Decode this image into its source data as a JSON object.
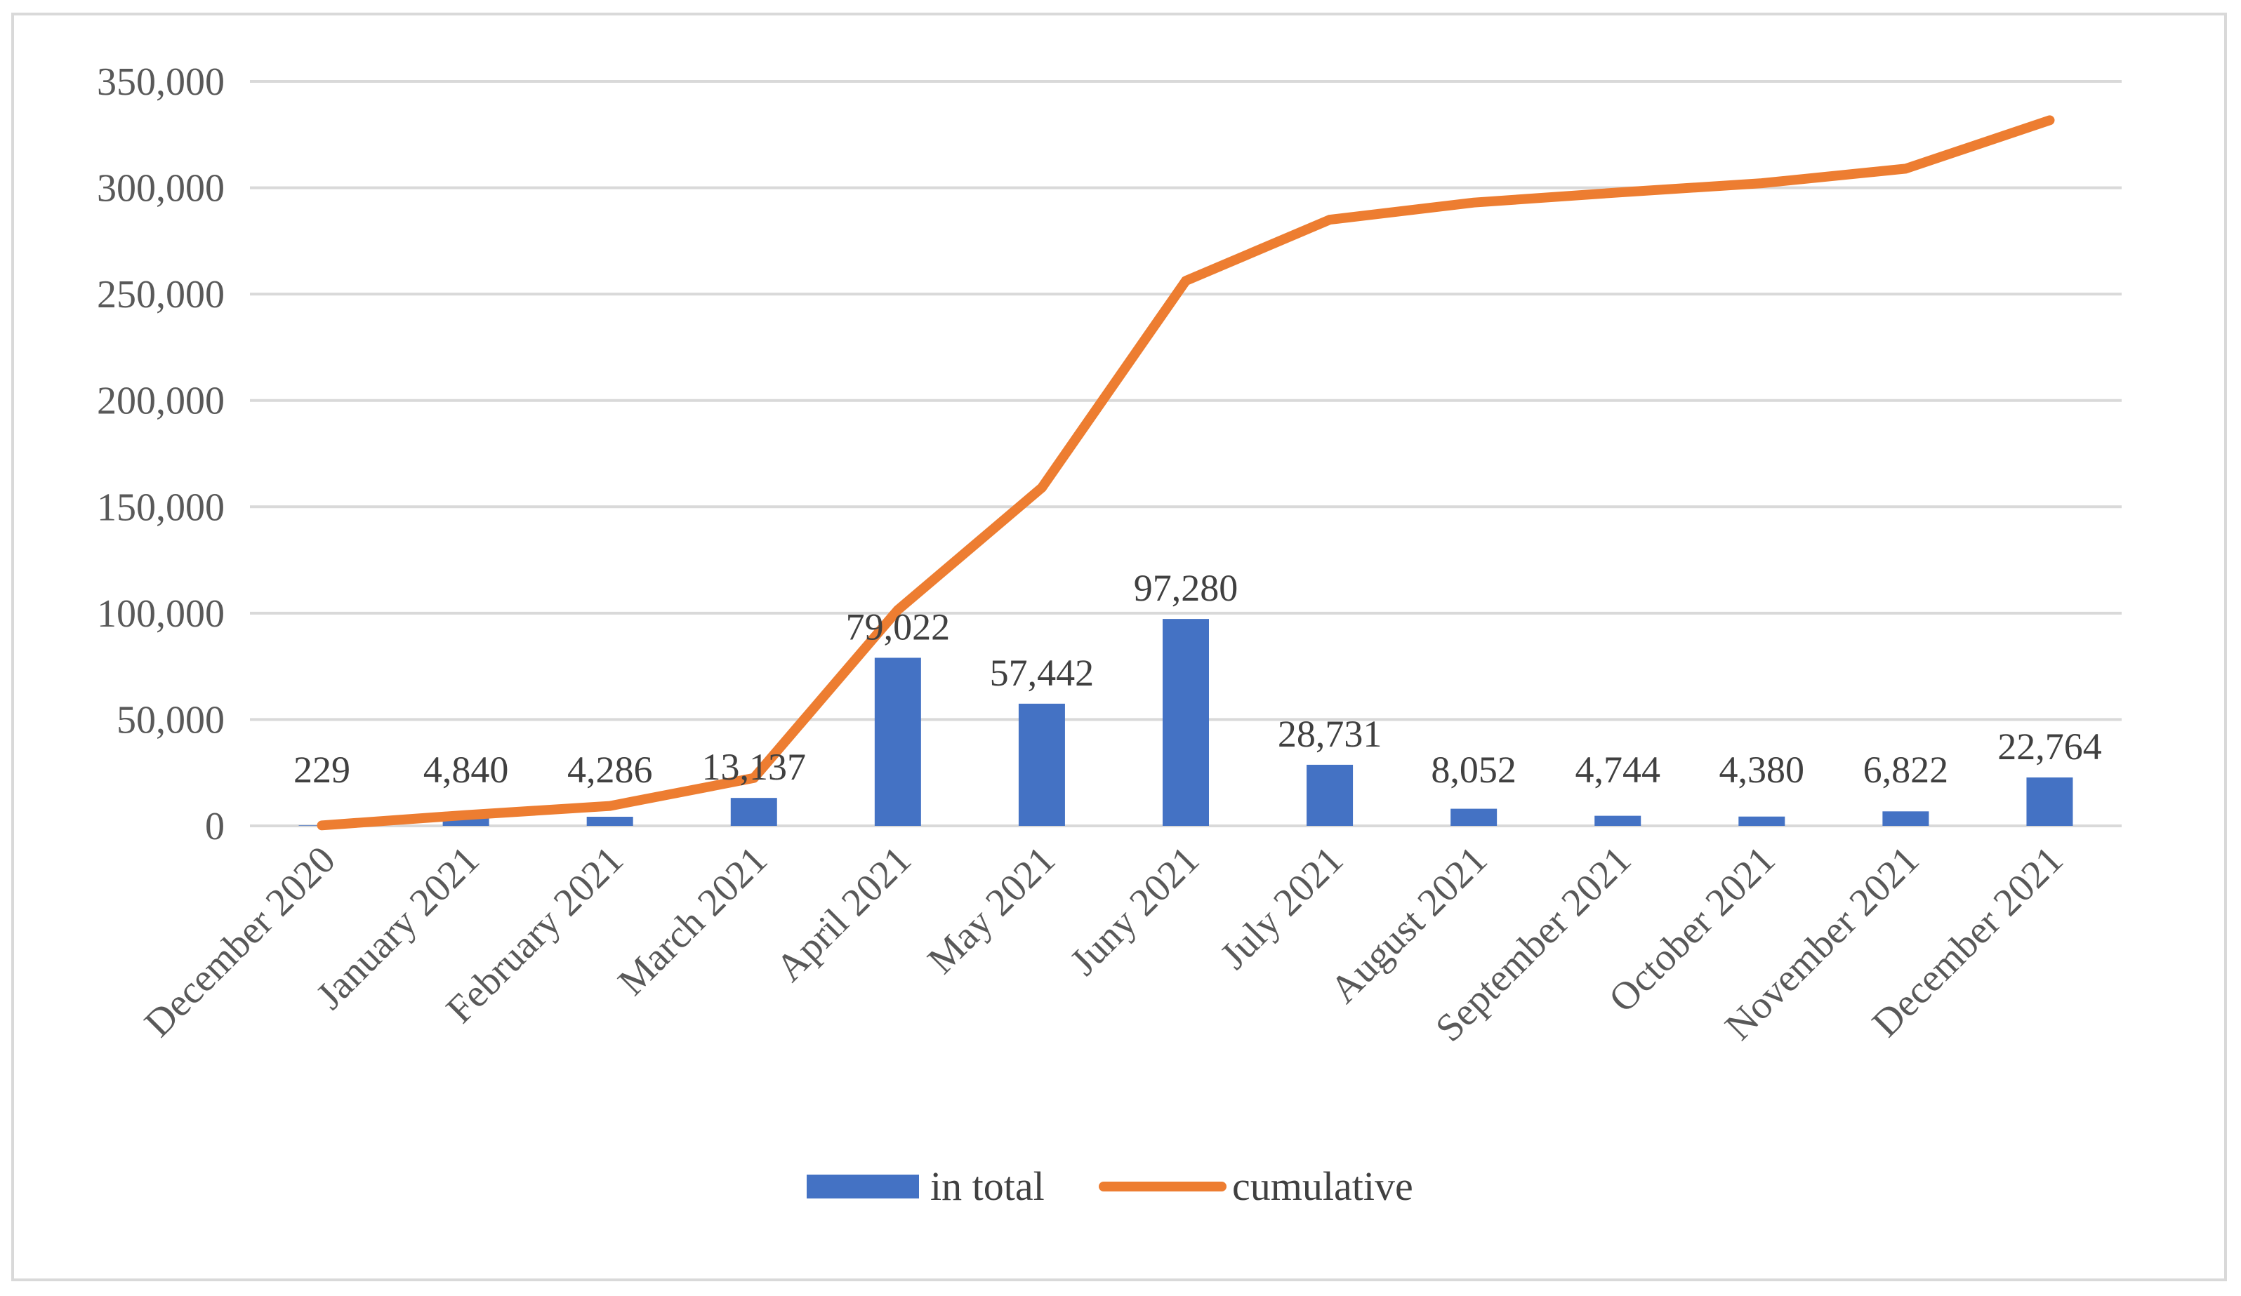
{
  "chart_data": {
    "type": "bar",
    "title": "",
    "xlabel": "",
    "ylabel": "",
    "ylim": [
      0,
      350000
    ],
    "yticks": [
      0,
      50000,
      100000,
      150000,
      200000,
      250000,
      300000,
      350000
    ],
    "ytick_labels": [
      "0",
      "50,000",
      "100,000",
      "150,000",
      "200,000",
      "250,000",
      "300,000",
      "350,000"
    ],
    "grid": true,
    "legend_position": "bottom",
    "categories": [
      "December 2020",
      "January 2021",
      "February 2021",
      "March 2021",
      "April 2021",
      "May 2021",
      "Juny 2021",
      "July 2021",
      "August 2021",
      "September 2021",
      "October 2021",
      "November 2021",
      "December 2021"
    ],
    "series": [
      {
        "name": "in total",
        "kind": "bar",
        "color": "#4472c4",
        "values": [
          229,
          4840,
          4286,
          13137,
          79022,
          57442,
          97280,
          28731,
          8052,
          4744,
          4380,
          6822,
          22764
        ],
        "labels": [
          "229",
          "4,840",
          "4,286",
          "13,137",
          "79,022",
          "57,442",
          "97,280",
          "28,731",
          "8,052",
          "4,744",
          "4,380",
          "6,822",
          "22,764"
        ]
      },
      {
        "name": "cumulative",
        "kind": "line",
        "color": "#ed7d31",
        "values": [
          229,
          5069,
          9355,
          22492,
          101514,
          158956,
          256236,
          284967,
          293019,
          297763,
          302143,
          308965,
          331729
        ]
      }
    ]
  }
}
